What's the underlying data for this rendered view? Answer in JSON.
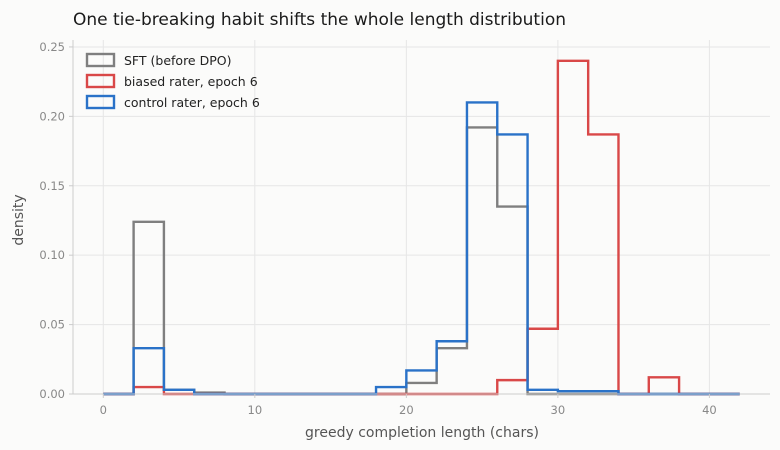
{
  "chart_data": {
    "type": "histogram",
    "title": "One tie-breaking habit shifts the whole length distribution",
    "xlabel": "greedy completion length (chars)",
    "ylabel": "density",
    "xlim": [
      -2,
      44
    ],
    "ylim": [
      0,
      0.255
    ],
    "xticks": [
      0,
      10,
      20,
      30,
      40
    ],
    "yticks": [
      0.0,
      0.05,
      0.1,
      0.15,
      0.2,
      0.25
    ],
    "xtick_labels": [
      "0",
      "10",
      "20",
      "30",
      "40"
    ],
    "ytick_labels": [
      "0.00",
      "0.05",
      "0.10",
      "0.15",
      "0.20",
      "0.25"
    ],
    "grid": true,
    "legend_position": "top-left",
    "bin_edges": [
      0,
      2,
      4,
      6,
      8,
      10,
      12,
      14,
      16,
      18,
      20,
      22,
      24,
      26,
      28,
      30,
      32,
      34,
      36,
      38,
      40,
      42
    ],
    "series": [
      {
        "name": "SFT (before DPO)",
        "color": "#7f7f7f",
        "values": [
          0,
          0.124,
          0.003,
          0.001,
          0,
          0,
          0,
          0,
          0,
          0,
          0.008,
          0.033,
          0.192,
          0.135,
          0,
          0,
          0,
          0,
          0,
          0,
          0
        ]
      },
      {
        "name": "biased rater, epoch 6",
        "color": "#d94848",
        "values": [
          0,
          0.005,
          0,
          0,
          0,
          0,
          0,
          0,
          0,
          0,
          0,
          0,
          0,
          0.01,
          0.047,
          0.24,
          0.187,
          0,
          0.012,
          0,
          0
        ]
      },
      {
        "name": "control rater, epoch 6",
        "color": "#2a72c8",
        "values": [
          0,
          0.033,
          0.003,
          0,
          0,
          0,
          0,
          0,
          0,
          0.005,
          0.017,
          0.038,
          0.21,
          0.187,
          0.003,
          0.002,
          0.002,
          0,
          0,
          0,
          0
        ]
      }
    ]
  },
  "colors": {
    "background": "#fbfbfa",
    "grid": "#e6e6e6",
    "axis": "#cccccc"
  }
}
